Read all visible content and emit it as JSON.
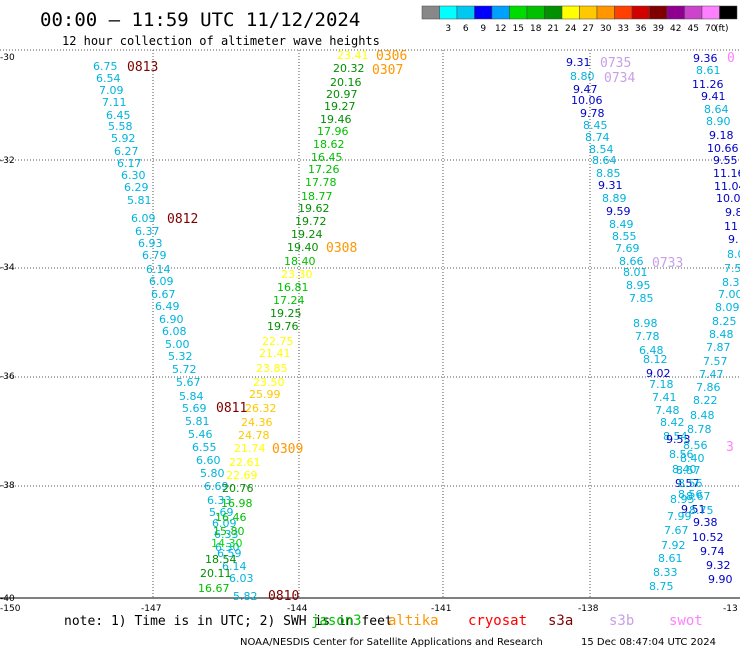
{
  "header": {
    "title": "00:00 – 11:59 UTC 11/12/2024",
    "subtitle": "12 hour collection of altimeter wave heights"
  },
  "legend": {
    "unit": "(ft)",
    "colors": [
      "#888888",
      "#00ffff",
      "#00c8f0",
      "#0000ff",
      "#00a0ff",
      "#00dc00",
      "#00c000",
      "#009000",
      "#ffff00",
      "#ffc800",
      "#ff9600",
      "#ff4000",
      "#d00000",
      "#800000",
      "#900090",
      "#cc44cc",
      "#ff80ff",
      "#000000"
    ],
    "ticks": [
      "3",
      "6",
      "9",
      "12",
      "15",
      "18",
      "21",
      "24",
      "27",
      "30",
      "33",
      "36",
      "39",
      "42",
      "45",
      "70"
    ]
  },
  "axes": {
    "lat_labels": [
      "-30",
      "-32",
      "-34",
      "-36",
      "-38",
      "-40"
    ],
    "lon_labels": [
      "-150",
      "-147",
      "-144",
      "-141",
      "-138",
      "-13"
    ]
  },
  "passes": [
    {
      "time": "0813",
      "color": "#800000"
    },
    {
      "time": "0812",
      "color": "#800000"
    },
    {
      "time": "0811",
      "color": "#800000"
    },
    {
      "time": "0810",
      "color": "#800000"
    },
    {
      "time": "0306",
      "color": "#ff9600"
    },
    {
      "time": "0307",
      "color": "#ff9600"
    },
    {
      "time": "0308",
      "color": "#ff9600"
    },
    {
      "time": "0309",
      "color": "#ff9600"
    },
    {
      "time": "0735",
      "color": "#c8a0e6"
    },
    {
      "time": "0734",
      "color": "#c8a0e6"
    },
    {
      "time": "0733",
      "color": "#c8a0e6"
    },
    {
      "time": "0",
      "color": "#ff80ff"
    },
    {
      "time": "3",
      "color": "#ff80ff"
    }
  ],
  "tracks": {
    "track_a": {
      "color": "#00b4dc",
      "values": [
        "6.75",
        "6.54",
        "7.09",
        "7.11",
        "6.45",
        "5.58",
        "5.92",
        "6.27",
        "6.17",
        "6.30",
        "6.29",
        "5.81",
        "6.09",
        "6.37",
        "6.93",
        "6.79",
        "6.14",
        "6.09",
        "6.67",
        "6.49",
        "6.90",
        "6.08",
        "5.00",
        "5.32",
        "5.72",
        "5.67",
        "5.84",
        "5.69",
        "5.81",
        "5.46",
        "6.55",
        "6.60",
        "5.80",
        "6.69",
        "6.33",
        "5.69",
        "6.09",
        "6.33",
        "6.30",
        "6.59",
        "6.14",
        "6.03",
        "5.82"
      ]
    },
    "track_b": {
      "values": [
        {
          "v": "23.41",
          "c": "#ffff00"
        },
        {
          "v": "20.32",
          "c": "#009000"
        },
        {
          "v": "20.16",
          "c": "#009000"
        },
        {
          "v": "20.97",
          "c": "#009000"
        },
        {
          "v": "19.27",
          "c": "#009000"
        },
        {
          "v": "19.46",
          "c": "#009000"
        },
        {
          "v": "17.96",
          "c": "#00c000"
        },
        {
          "v": "18.62",
          "c": "#00c000"
        },
        {
          "v": "16.45",
          "c": "#00c000"
        },
        {
          "v": "17.26",
          "c": "#00c000"
        },
        {
          "v": "17.78",
          "c": "#00c000"
        },
        {
          "v": "18.77",
          "c": "#00c000"
        },
        {
          "v": "19.62",
          "c": "#009000"
        },
        {
          "v": "19.72",
          "c": "#009000"
        },
        {
          "v": "19.24",
          "c": "#009000"
        },
        {
          "v": "19.40",
          "c": "#009000"
        },
        {
          "v": "18.40",
          "c": "#00c000"
        },
        {
          "v": "23.30",
          "c": "#ffff00"
        },
        {
          "v": "16.81",
          "c": "#00c000"
        },
        {
          "v": "17.24",
          "c": "#00c000"
        },
        {
          "v": "19.25",
          "c": "#009000"
        },
        {
          "v": "19.76",
          "c": "#009000"
        },
        {
          "v": "22.75",
          "c": "#ffff00"
        },
        {
          "v": "21.41",
          "c": "#ffff00"
        },
        {
          "v": "23.85",
          "c": "#ffff00"
        },
        {
          "v": "23.50",
          "c": "#ffff00"
        },
        {
          "v": "25.99",
          "c": "#ffc800"
        },
        {
          "v": "26.32",
          "c": "#ffc800"
        },
        {
          "v": "24.36",
          "c": "#ffc800"
        },
        {
          "v": "24.78",
          "c": "#ffc800"
        },
        {
          "v": "21.74",
          "c": "#ffff00"
        },
        {
          "v": "22.61",
          "c": "#ffff00"
        },
        {
          "v": "22.69",
          "c": "#ffff00"
        },
        {
          "v": "20.76",
          "c": "#009000"
        },
        {
          "v": "16.98",
          "c": "#00c000"
        },
        {
          "v": "16.46",
          "c": "#00c000"
        },
        {
          "v": "15.80",
          "c": "#00c000"
        },
        {
          "v": "14.30",
          "c": "#00dc00"
        },
        {
          "v": "18.54",
          "c": "#009000"
        },
        {
          "v": "20.11",
          "c": "#009000"
        },
        {
          "v": "16.67",
          "c": "#00c000"
        }
      ]
    },
    "track_c": {
      "values": [
        {
          "v": "9.31",
          "c": "#0000c8"
        },
        {
          "v": "8.80",
          "c": "#00b4dc"
        },
        {
          "v": "9.47",
          "c": "#0000c8"
        },
        {
          "v": "10.06",
          "c": "#0000c8"
        },
        {
          "v": "9.78",
          "c": "#0000c8"
        },
        {
          "v": "8.45",
          "c": "#00b4dc"
        },
        {
          "v": "8.74",
          "c": "#00b4dc"
        },
        {
          "v": "8.54",
          "c": "#00b4dc"
        },
        {
          "v": "8.64",
          "c": "#00b4dc"
        },
        {
          "v": "8.85",
          "c": "#00b4dc"
        },
        {
          "v": "9.31",
          "c": "#0000c8"
        },
        {
          "v": "8.89",
          "c": "#00b4dc"
        },
        {
          "v": "9.59",
          "c": "#0000c8"
        },
        {
          "v": "8.49",
          "c": "#00b4dc"
        },
        {
          "v": "8.55",
          "c": "#00b4dc"
        },
        {
          "v": "7.69",
          "c": "#00b4dc"
        },
        {
          "v": "8.66",
          "c": "#00b4dc"
        },
        {
          "v": "8.01",
          "c": "#00b4dc"
        },
        {
          "v": "8.95",
          "c": "#00b4dc"
        },
        {
          "v": "7.85",
          "c": "#00b4dc"
        },
        {
          "v": "8.98",
          "c": "#00b4dc"
        },
        {
          "v": "7.78",
          "c": "#00b4dc"
        },
        {
          "v": "6.48",
          "c": "#00b4dc"
        },
        {
          "v": "8.12",
          "c": "#00b4dc"
        },
        {
          "v": "9.02",
          "c": "#0000c8"
        },
        {
          "v": "7.18",
          "c": "#00b4dc"
        },
        {
          "v": "7.41",
          "c": "#00b4dc"
        },
        {
          "v": "7.48",
          "c": "#00b4dc"
        },
        {
          "v": "8.42",
          "c": "#00b4dc"
        },
        {
          "v": "8.54",
          "c": "#00b4dc"
        },
        {
          "v": "9.53",
          "c": "#0000c8"
        },
        {
          "v": "8.56",
          "c": "#00b4dc"
        },
        {
          "v": "8.40",
          "c": "#00b4dc"
        },
        {
          "v": "9.57",
          "c": "#0000c8"
        },
        {
          "v": "8.56",
          "c": "#00b4dc"
        },
        {
          "v": "9.51",
          "c": "#0000c8"
        },
        {
          "v": "8.95",
          "c": "#00b4dc"
        },
        {
          "v": "7.99",
          "c": "#00b4dc"
        },
        {
          "v": "7.67",
          "c": "#00b4dc"
        },
        {
          "v": "7.92",
          "c": "#00b4dc"
        },
        {
          "v": "8.61",
          "c": "#00b4dc"
        },
        {
          "v": "8.33",
          "c": "#00b4dc"
        },
        {
          "v": "8.75",
          "c": "#00b4dc"
        }
      ]
    },
    "track_d": {
      "values": [
        {
          "v": "9.36",
          "c": "#0000c8"
        },
        {
          "v": "8.61",
          "c": "#00b4dc"
        },
        {
          "v": "11.26",
          "c": "#0000c8"
        },
        {
          "v": "9.41",
          "c": "#0000c8"
        },
        {
          "v": "8.64",
          "c": "#00b4dc"
        },
        {
          "v": "8.90",
          "c": "#00b4dc"
        },
        {
          "v": "9.18",
          "c": "#0000c8"
        },
        {
          "v": "10.66",
          "c": "#0000c8"
        },
        {
          "v": "9.55",
          "c": "#0000c8"
        },
        {
          "v": "11.16",
          "c": "#0000c8"
        },
        {
          "v": "11.04",
          "c": "#0000c8"
        },
        {
          "v": "10.0",
          "c": "#0000c8"
        },
        {
          "v": "9.8",
          "c": "#0000c8"
        },
        {
          "v": "11",
          "c": "#0000c8"
        },
        {
          "v": "9.",
          "c": "#0000c8"
        },
        {
          "v": "8.0",
          "c": "#00b4dc"
        },
        {
          "v": "7.5",
          "c": "#00b4dc"
        },
        {
          "v": "8.3",
          "c": "#00b4dc"
        },
        {
          "v": "7.00",
          "c": "#00b4dc"
        },
        {
          "v": "8.09",
          "c": "#00b4dc"
        },
        {
          "v": "8.25",
          "c": "#00b4dc"
        },
        {
          "v": "8.48",
          "c": "#00b4dc"
        },
        {
          "v": "7.87",
          "c": "#00b4dc"
        },
        {
          "v": "7.57",
          "c": "#00b4dc"
        },
        {
          "v": "7.47",
          "c": "#00b4dc"
        },
        {
          "v": "7.86",
          "c": "#00b4dc"
        },
        {
          "v": "8.22",
          "c": "#00b4dc"
        },
        {
          "v": "8.48",
          "c": "#00b4dc"
        },
        {
          "v": "8.78",
          "c": "#00b4dc"
        },
        {
          "v": "8.56",
          "c": "#00b4dc"
        },
        {
          "v": "8.40",
          "c": "#00b4dc"
        },
        {
          "v": "8.57",
          "c": "#00b4dc"
        },
        {
          "v": "8.56",
          "c": "#00b4dc"
        },
        {
          "v": "8.67",
          "c": "#00b4dc"
        },
        {
          "v": "8.75",
          "c": "#00b4dc"
        },
        {
          "v": "9.38",
          "c": "#0000c8"
        },
        {
          "v": "10.52",
          "c": "#0000c8"
        },
        {
          "v": "9.74",
          "c": "#0000c8"
        },
        {
          "v": "9.32",
          "c": "#0000c8"
        },
        {
          "v": "9.90",
          "c": "#0000c8"
        }
      ]
    }
  },
  "footer": {
    "note": "note:  1) Time is in UTC; 2) SWH is in feet",
    "satellites": [
      {
        "name": "jason3",
        "color": "#00c000"
      },
      {
        "name": "altika",
        "color": "#ff9600"
      },
      {
        "name": "cryosat",
        "color": "#ff0000"
      },
      {
        "name": "s3a",
        "color": "#800000"
      },
      {
        "name": "s3b",
        "color": "#c8a0e6"
      },
      {
        "name": "swot",
        "color": "#ff80ff"
      }
    ],
    "credit": "NOAA/NESDIS Center for Satellite Applications and Research",
    "generated": "15 Dec 08:47:04 UTC 2024"
  }
}
